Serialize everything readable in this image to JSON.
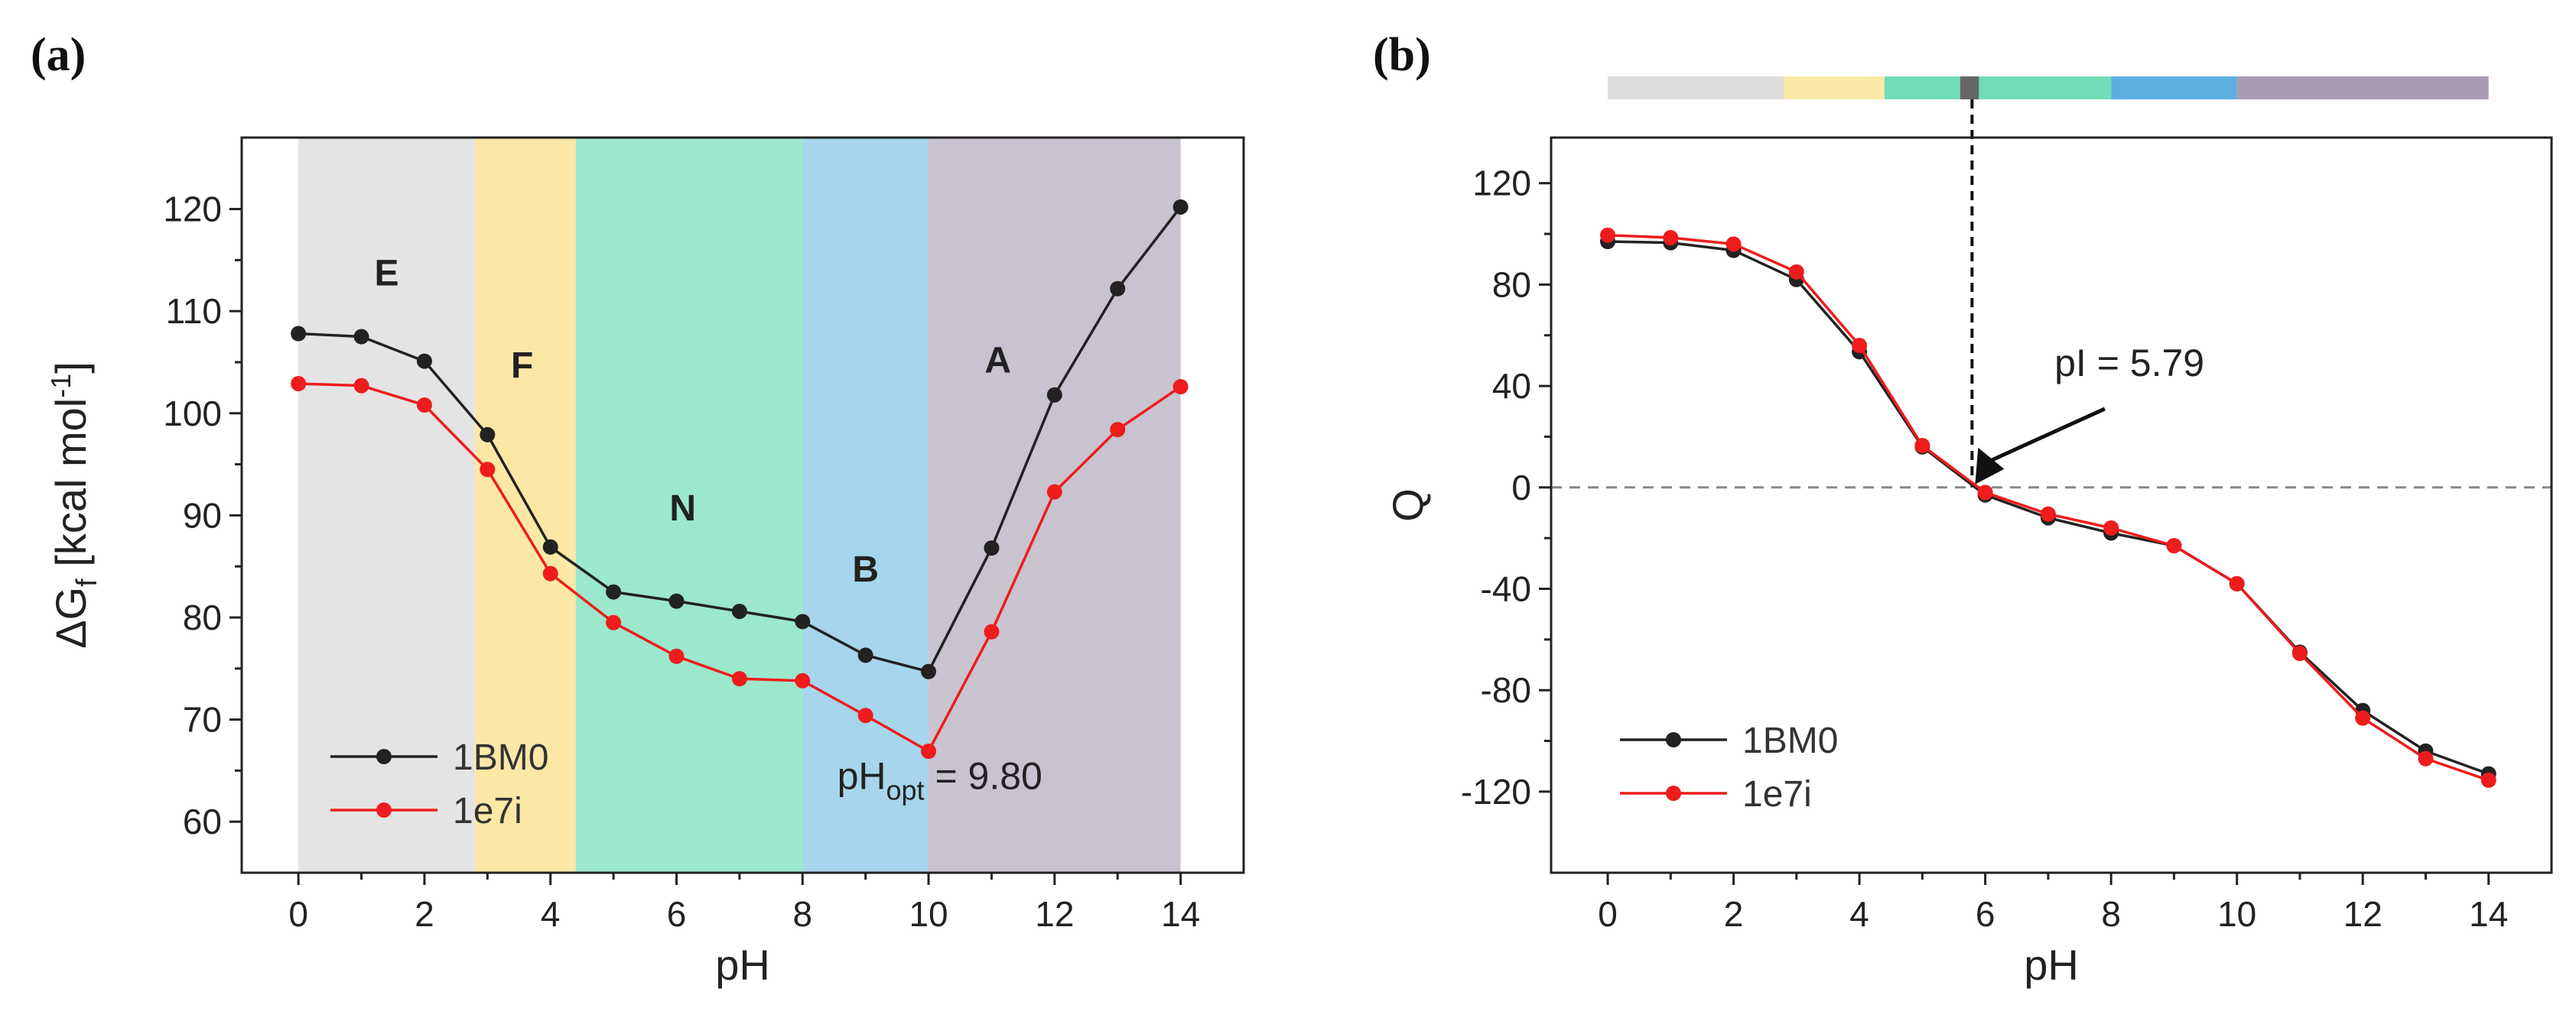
{
  "panels": {
    "a": {
      "label": "(a)"
    },
    "b": {
      "label": "(b)"
    }
  },
  "chart_data": [
    {
      "type": "line",
      "panel": "(a)",
      "xlabel": "pH",
      "ylabel_main": "ΔG",
      "ylabel_sub": "f",
      "ylabel_units_pre": "[kcal mol",
      "ylabel_units_sup": "-1",
      "ylabel_units_post": "]",
      "xlim": [
        -0.9,
        15
      ],
      "ylim": [
        55,
        127
      ],
      "xticks": [
        0,
        2,
        4,
        6,
        8,
        10,
        12,
        14
      ],
      "yticks": [
        60,
        70,
        80,
        90,
        100,
        110,
        120
      ],
      "x": [
        0,
        1,
        2,
        3,
        4,
        5,
        6,
        7,
        8,
        9,
        10,
        11,
        12,
        13,
        14
      ],
      "series": [
        {
          "name": "1BM0",
          "color": "#222222",
          "values": [
            107.8,
            107.5,
            105.1,
            97.9,
            86.9,
            82.5,
            81.6,
            80.6,
            79.6,
            76.3,
            74.7,
            86.8,
            101.8,
            112.2,
            120.2
          ]
        },
        {
          "name": "1e7i",
          "color": "#ee1c1c",
          "values": [
            102.9,
            102.7,
            100.8,
            94.5,
            84.3,
            79.5,
            76.2,
            74.0,
            73.8,
            70.4,
            66.9,
            78.6,
            92.3,
            98.4,
            102.6
          ]
        }
      ],
      "regions": [
        {
          "label": "E",
          "from": 0,
          "to": 2.8,
          "color": "#e4e4e4",
          "label_at": [
            1.4,
            112.5
          ]
        },
        {
          "label": "F",
          "from": 2.8,
          "to": 4.4,
          "color": "#fce8a6",
          "label_at": [
            3.55,
            103.5
          ]
        },
        {
          "label": "N",
          "from": 4.4,
          "to": 8.0,
          "color": "#9be8cc",
          "label_at": [
            6.1,
            89.5
          ]
        },
        {
          "label": "B",
          "from": 8.0,
          "to": 10.0,
          "color": "#a6d5ec",
          "label_at": [
            9.0,
            83.5
          ]
        },
        {
          "label": "A",
          "from": 10.0,
          "to": 14.0,
          "color": "#c9c3d0",
          "label_at": [
            11.1,
            104.0
          ]
        }
      ],
      "annotation": {
        "main": "pH",
        "sub": "opt",
        "tail": " = 9.80"
      },
      "legend": "bottom-left"
    },
    {
      "type": "line",
      "panel": "(b)",
      "xlabel": "pH",
      "ylabel": "Q",
      "xlim": [
        -0.9,
        15
      ],
      "ylim": [
        -152,
        138
      ],
      "xticks": [
        0,
        2,
        4,
        6,
        8,
        10,
        12,
        14
      ],
      "yticks": [
        120,
        80,
        40,
        0,
        -40,
        -80,
        -120
      ],
      "x": [
        0,
        1,
        2,
        3,
        4,
        5,
        6,
        7,
        8,
        9,
        10,
        11,
        12,
        13,
        14
      ],
      "series": [
        {
          "name": "1BM0",
          "color": "#222222",
          "values": [
            97.0,
            96.5,
            93.5,
            82.0,
            53.5,
            16.0,
            -3.0,
            -12.0,
            -18.0,
            -23.0,
            -38.0,
            -65.0,
            -88.0,
            -104.0,
            -113.0
          ]
        },
        {
          "name": "1e7i",
          "color": "#ee1c1c",
          "values": [
            99.5,
            98.5,
            96.0,
            85.0,
            56.0,
            16.5,
            -2.0,
            -10.5,
            -16.0,
            -23.0,
            -38.0,
            -65.5,
            -91.0,
            -107.0,
            -115.5
          ]
        }
      ],
      "zero_line": true,
      "pI": 5.79,
      "annotation": "pI = 5.79",
      "top_bar": [
        {
          "from": 0,
          "to": 2.8,
          "color": "#dcdcdc"
        },
        {
          "from": 2.8,
          "to": 4.4,
          "color": "#fce8a6"
        },
        {
          "from": 4.4,
          "to": 5.6,
          "color": "#6fddb8"
        },
        {
          "from": 5.6,
          "to": 5.9,
          "color": "#666666"
        },
        {
          "from": 5.9,
          "to": 8.0,
          "color": "#6fddb8"
        },
        {
          "from": 8.0,
          "to": 10.0,
          "color": "#5caee0"
        },
        {
          "from": 10.0,
          "to": 14.0,
          "color": "#a99cb0"
        }
      ],
      "legend": "bottom-left"
    }
  ]
}
